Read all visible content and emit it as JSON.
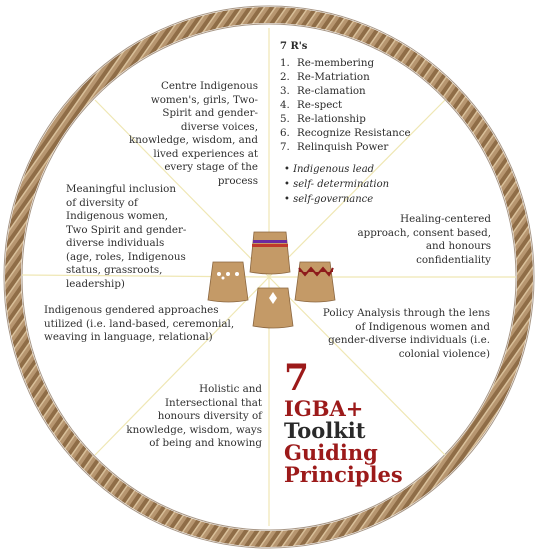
{
  "diagram": {
    "segments": {
      "top_left": "Centre Indigenous women's, girls, Two-Spirit and gender-diverse voices, knowledge, wisdom, and lived experiences at every stage of the process",
      "left_upper": "Meaningful inclusion of diversity of Indigenous women, Two Spirit and gender-diverse individuals (age, roles, Indigenous status, grassroots, leadership)",
      "left_middle": "Indigenous gendered approaches utilized (i.e. land-based, ceremonial, weaving in language, relational)",
      "bottom_left": "Holistic and Intersectional that honours diversity of knowledge, wisdom, ways of being and knowing",
      "right_upper": "Healing-centered approach, consent based, and honours confidentiality",
      "right_lower": "Policy Analysis through the lens of Indigenous women and gender-diverse individuals (i.e. colonial violence)"
    },
    "rs": {
      "title": "7 R's",
      "items": [
        {
          "num": "1.",
          "text": "Re-membering"
        },
        {
          "num": "2.",
          "text": "Re-Matriation"
        },
        {
          "num": "3.",
          "text": "Re-clamation"
        },
        {
          "num": "4.",
          "text": "Re-spect"
        },
        {
          "num": "5.",
          "text": "Re-lationship"
        },
        {
          "num": "6.",
          "text": "Recognize Resistance"
        },
        {
          "num": "7.",
          "text": "Relinquish Power"
        }
      ],
      "bullets": [
        "Indigenous lead",
        "self- determination",
        "self-governance"
      ]
    },
    "toolkit": {
      "number": "7",
      "line1": "IGBA+",
      "line2": "Toolkit",
      "line3": "Guiding",
      "line4": "Principles"
    },
    "colors": {
      "rim": "#a88760",
      "rim_dark": "#6e5236",
      "spoke": "#efe7b4",
      "accent_red": "#9c1a1a",
      "skirt": "#c49a67"
    }
  }
}
